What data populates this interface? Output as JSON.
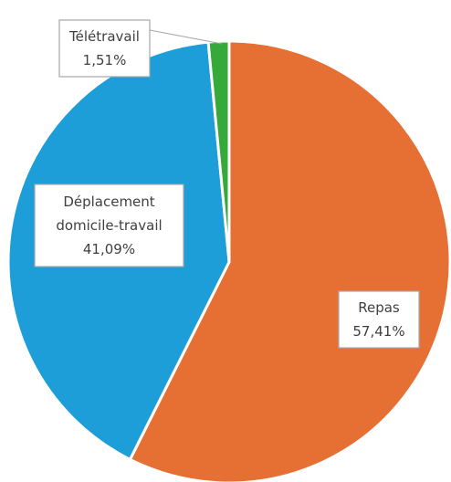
{
  "chart_data": {
    "type": "pie",
    "title": "",
    "unit": "%",
    "slices": [
      {
        "name": "Repas",
        "value": 57.41,
        "label_lines": [
          "Repas",
          "57,41%"
        ],
        "color": "#e66f33"
      },
      {
        "name": "Déplacement domicile-travail",
        "value": 41.09,
        "label_lines": [
          "Déplacement",
          "domicile-travail",
          "41,09%"
        ],
        "color": "#1e9ed8"
      },
      {
        "name": "Télétravail",
        "value": 1.51,
        "label_lines": [
          "Télétravail",
          "1,51%"
        ],
        "color": "#35a93a"
      }
    ],
    "start_angle_deg": 0,
    "direction": "clockwise",
    "slice_border_color": "#ffffff",
    "legend": "none"
  }
}
